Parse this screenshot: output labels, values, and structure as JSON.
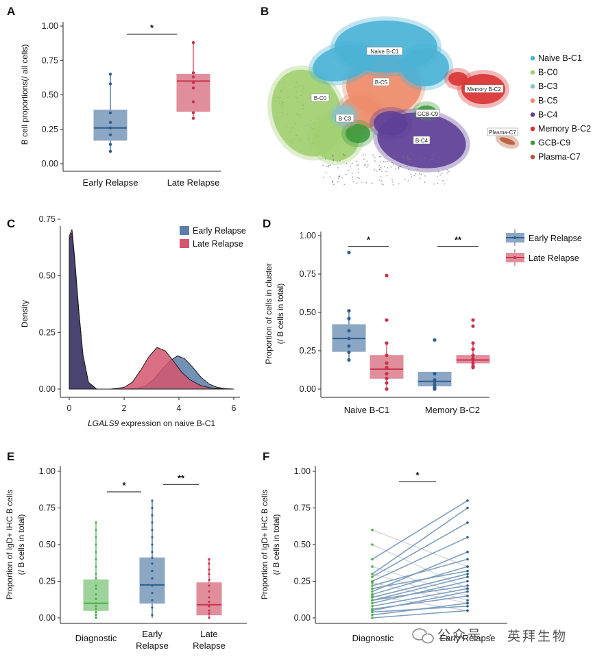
{
  "watermark": {
    "left_text": "公众号 ·",
    "right_text": "英拜生物"
  },
  "chart_data": [
    {
      "panel": "A",
      "type": "box",
      "ylabel": "B cell proportions(/ all cells)",
      "ylim": [
        0,
        1
      ],
      "yticks": [
        "0.00",
        "0.25",
        "0.50",
        "0.75",
        "1.00"
      ],
      "categories": [
        "Early Relapse",
        "Late Relapse"
      ],
      "colors": [
        "#2d5f91",
        "#c8314b"
      ],
      "boxes": [
        {
          "min": 0.09,
          "q1": 0.17,
          "median": 0.26,
          "q3": 0.39,
          "max": 0.65,
          "points": [
            0.09,
            0.14,
            0.21,
            0.26,
            0.3,
            0.37,
            0.58,
            0.65
          ]
        },
        {
          "min": 0.33,
          "q1": 0.38,
          "median": 0.6,
          "q3": 0.65,
          "max": 0.88,
          "points": [
            0.33,
            0.37,
            0.45,
            0.55,
            0.59,
            0.63,
            0.66,
            0.88
          ]
        }
      ],
      "significance": [
        {
          "from": 0,
          "to": 1,
          "label": "*",
          "y": 0.94
        }
      ]
    },
    {
      "panel": "B",
      "type": "scatter",
      "description_units": "UMAP embedding, axes unlabeled",
      "clusters": [
        {
          "name": "Naive B-C1",
          "color": "#4bb3d6",
          "label": "Naive B-C1"
        },
        {
          "name": "B-C0",
          "color": "#a2cf72",
          "label": "B-C0"
        },
        {
          "name": "B-C3",
          "color": "#86c3cc",
          "label": "B-C3"
        },
        {
          "name": "B-C5",
          "color": "#ec8d6c",
          "label": "B-C5"
        },
        {
          "name": "B-C4",
          "color": "#5e3f97",
          "label": "B-C4"
        },
        {
          "name": "Memory B-C2",
          "color": "#d93333",
          "label": "Memory B-C2"
        },
        {
          "name": "GCB-C9",
          "color": "#3f9a3f",
          "label": "GCB-C9"
        },
        {
          "name": "Plasma-C7",
          "color": "#b65a3a",
          "label": "Plasma-C7"
        }
      ]
    },
    {
      "panel": "C",
      "type": "area",
      "xlabel_italic": "LGALS9",
      "xlabel_rest": " expression on naive B-C1",
      "ylabel": "Density",
      "xlim": [
        0,
        6
      ],
      "ylim": [
        0,
        1
      ],
      "xticks": [
        "0",
        "2",
        "4",
        "6"
      ],
      "yticks": [
        "0.00",
        "0.25",
        "0.50",
        "0.75"
      ],
      "series": [
        {
          "name": "Early Relapse",
          "color": "#5b7ea8",
          "x": [
            0.0,
            0.1,
            0.2,
            0.35,
            0.5,
            0.7,
            1.0,
            1.5,
            2.0,
            2.5,
            2.8,
            3.1,
            3.4,
            3.7,
            3.95,
            4.2,
            4.5,
            4.8,
            5.1,
            5.4,
            5.7,
            6.0
          ],
          "y": [
            0.88,
            0.92,
            0.75,
            0.45,
            0.2,
            0.04,
            0.0,
            0.0,
            0.0,
            0.005,
            0.02,
            0.06,
            0.12,
            0.17,
            0.195,
            0.18,
            0.13,
            0.07,
            0.03,
            0.01,
            0.003,
            0.0
          ]
        },
        {
          "name": "Late Relapse",
          "color": "#d4566f",
          "x": [
            0.0,
            0.1,
            0.2,
            0.35,
            0.5,
            0.7,
            1.0,
            1.5,
            2.0,
            2.3,
            2.6,
            2.9,
            3.2,
            3.5,
            3.8,
            4.1,
            4.4,
            4.8,
            5.2,
            5.6,
            6.0
          ],
          "y": [
            0.9,
            0.94,
            0.77,
            0.46,
            0.2,
            0.04,
            0.0,
            0.0,
            0.01,
            0.04,
            0.11,
            0.19,
            0.245,
            0.225,
            0.165,
            0.1,
            0.055,
            0.02,
            0.006,
            0.001,
            0.0
          ]
        }
      ]
    },
    {
      "panel": "D",
      "type": "box",
      "ylabel_line1": "Proportion of cells in cluster",
      "ylabel_line2": "(/ B cells in total)",
      "ylim": [
        0,
        1
      ],
      "yticks": [
        "0.00",
        "0.25",
        "0.50",
        "0.75",
        "1.00"
      ],
      "groups": [
        "Naive B-C1",
        "Memory B-C2"
      ],
      "series": [
        {
          "name": "Early Relapse",
          "color": "#2d5f91",
          "boxes": [
            {
              "min": 0.19,
              "q1": 0.245,
              "median": 0.33,
              "q3": 0.42,
              "max": 0.51,
              "points": [
                0.89,
                0.51,
                0.46,
                0.38,
                0.33,
                0.28,
                0.24,
                0.19
              ]
            },
            {
              "min": 0.0,
              "q1": 0.02,
              "median": 0.05,
              "q3": 0.11,
              "max": 0.11,
              "points": [
                0.32,
                0.1,
                0.06,
                0.05,
                0.03,
                0.01,
                0.0
              ]
            }
          ]
        },
        {
          "name": "Late Relapse",
          "color": "#c8314b",
          "boxes": [
            {
              "min": 0.0,
              "q1": 0.07,
              "median": 0.13,
              "q3": 0.22,
              "max": 0.3,
              "points": [
                0.74,
                0.45,
                0.3,
                0.22,
                0.17,
                0.14,
                0.1,
                0.07,
                0.04,
                0.0
              ]
            },
            {
              "min": 0.14,
              "q1": 0.17,
              "median": 0.19,
              "q3": 0.22,
              "max": 0.3,
              "points": [
                0.45,
                0.41,
                0.3,
                0.26,
                0.22,
                0.2,
                0.19,
                0.17,
                0.15,
                0.14
              ]
            }
          ]
        }
      ],
      "significance": [
        {
          "group": 0,
          "label": "*",
          "y": 0.93
        },
        {
          "group": 1,
          "label": "**",
          "y": 0.93
        }
      ],
      "legend": [
        "Early Relapse",
        "Late Relapse"
      ]
    },
    {
      "panel": "E",
      "type": "box",
      "ylabel_line1": "Proportion of IgD+ IHC B cells",
      "ylabel_line2": "(/ B cells in total)",
      "ylim": [
        0,
        1
      ],
      "yticks": [
        "0.00",
        "0.25",
        "0.50",
        "0.75",
        "1.00"
      ],
      "categories": [
        [
          "Diagnostic"
        ],
        [
          "Early",
          "Relapse"
        ],
        [
          "Late",
          "Relapse"
        ]
      ],
      "colors": [
        "#4daf4a",
        "#2d5f91",
        "#c8314b"
      ],
      "boxes": [
        {
          "min": 0.0,
          "q1": 0.05,
          "median": 0.1,
          "q3": 0.26,
          "max": 0.65,
          "points": [
            0.65,
            0.6,
            0.55,
            0.5,
            0.45,
            0.4,
            0.35,
            0.3,
            0.27,
            0.22,
            0.2,
            0.16,
            0.13,
            0.1,
            0.08,
            0.06,
            0.04,
            0.02,
            0.0
          ]
        },
        {
          "min": 0.0,
          "q1": 0.1,
          "median": 0.225,
          "q3": 0.41,
          "max": 0.8,
          "points": [
            0.8,
            0.75,
            0.7,
            0.65,
            0.6,
            0.55,
            0.5,
            0.45,
            0.41,
            0.37,
            0.32,
            0.27,
            0.22,
            0.17,
            0.12,
            0.07,
            0.02
          ]
        },
        {
          "min": 0.0,
          "q1": 0.02,
          "median": 0.09,
          "q3": 0.24,
          "max": 0.4,
          "points": [
            0.4,
            0.37,
            0.33,
            0.3,
            0.26,
            0.22,
            0.18,
            0.14,
            0.11,
            0.08,
            0.05,
            0.03,
            0.0
          ]
        }
      ],
      "significance": [
        {
          "from": 0,
          "to": 1,
          "label": "*",
          "y": 0.86
        },
        {
          "from": 1,
          "to": 2,
          "label": "**",
          "y": 0.91
        }
      ]
    },
    {
      "panel": "F",
      "type": "line",
      "ylabel_line1": "Proportion of IgD+ IHC B cells",
      "ylabel_line2": "(/ B cells in total)",
      "ylim": [
        0,
        1
      ],
      "yticks": [
        "0.00",
        "0.25",
        "0.50",
        "0.75",
        "1.00"
      ],
      "categories": [
        "Diagnostic",
        "Early Relapse"
      ],
      "increasing_color": "#7f9fbf",
      "decreasing_color": "#d3d3d3",
      "start_color": "#4daf4a",
      "end_color": "#2d5f91",
      "pairs": [
        [
          0.0,
          0.05
        ],
        [
          0.02,
          0.1
        ],
        [
          0.04,
          0.08
        ],
        [
          0.06,
          0.15
        ],
        [
          0.08,
          0.2
        ],
        [
          0.1,
          0.25
        ],
        [
          0.12,
          0.22
        ],
        [
          0.14,
          0.3
        ],
        [
          0.16,
          0.35
        ],
        [
          0.18,
          0.45
        ],
        [
          0.2,
          0.32
        ],
        [
          0.22,
          0.4
        ],
        [
          0.25,
          0.55
        ],
        [
          0.28,
          0.65
        ],
        [
          0.3,
          0.75
        ],
        [
          0.4,
          0.8
        ],
        [
          0.12,
          0.28
        ],
        [
          0.05,
          0.18
        ],
        [
          0.6,
          0.35
        ],
        [
          0.5,
          0.2
        ],
        [
          0.35,
          0.15
        ],
        [
          0.24,
          0.1
        ],
        [
          0.15,
          0.05
        ],
        [
          0.3,
          0.12
        ]
      ],
      "significance": [
        {
          "from": 0,
          "to": 1,
          "label": "*",
          "y": 0.93
        }
      ]
    }
  ]
}
